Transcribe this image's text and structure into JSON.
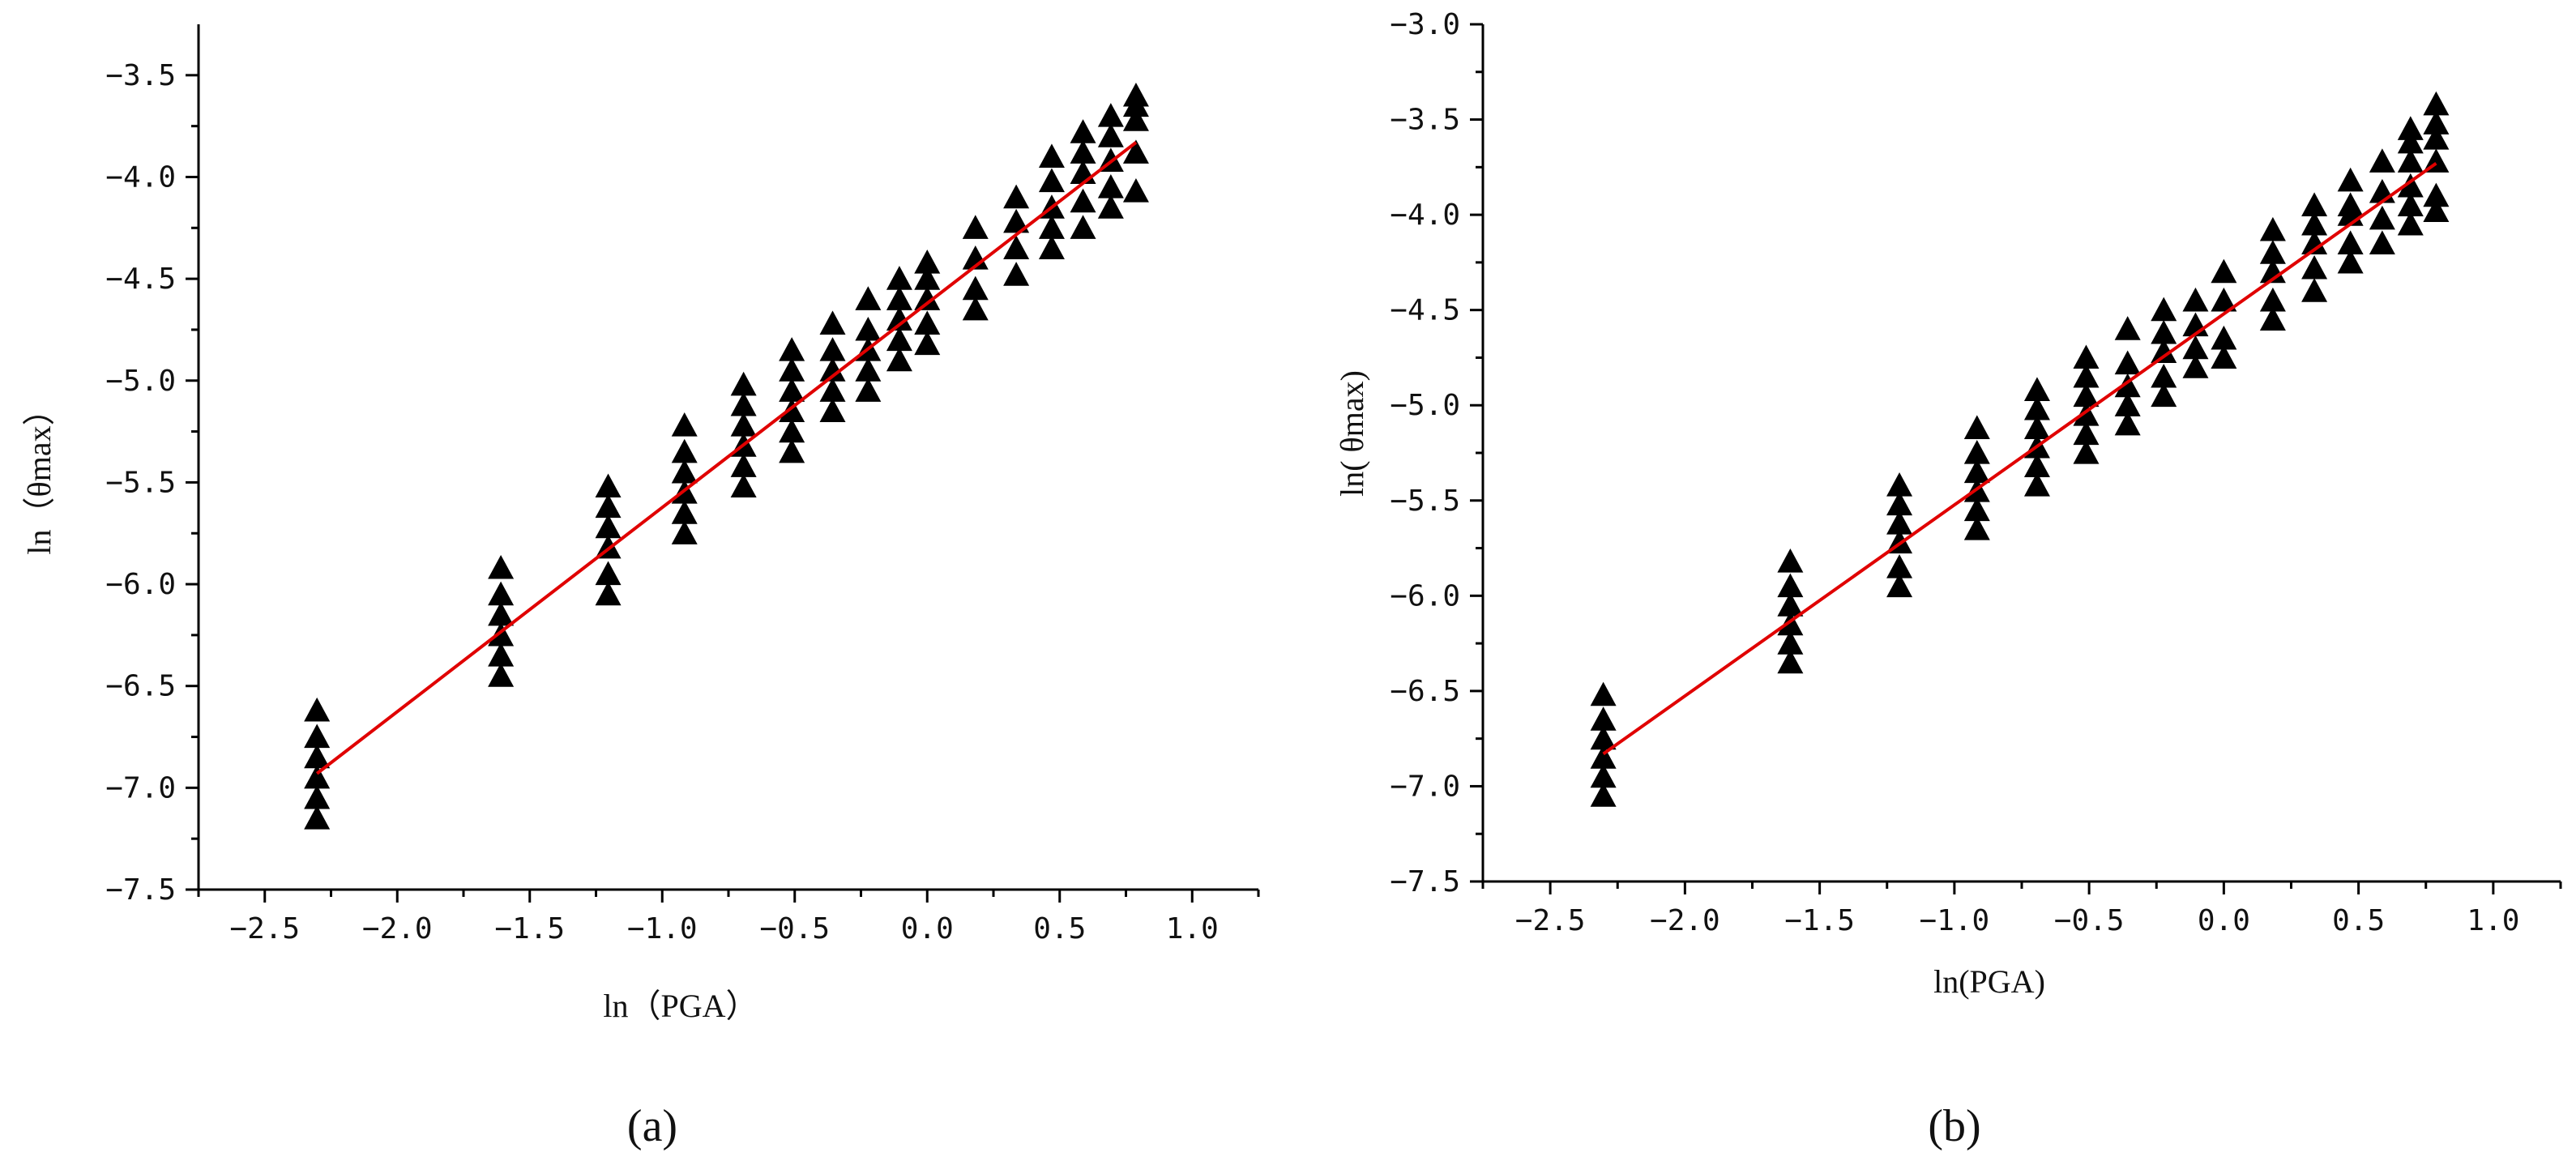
{
  "chart_data": [
    {
      "type": "scatter",
      "panel_label": "(a)",
      "xlabel": "ln（PGA）",
      "ylabel": "ln（θmax）",
      "xlim": [
        -2.75,
        1.25
      ],
      "ylim": [
        -7.5,
        -3.25
      ],
      "xticks": [
        -2.5,
        -2.0,
        -1.5,
        -1.0,
        -0.5,
        0.0,
        0.5,
        1.0
      ],
      "xtick_labels": [
        "−2.5",
        "−2.0",
        "−1.5",
        "−1.0",
        "−0.5",
        "0.0",
        "0.5",
        "1.0"
      ],
      "yticks": [
        -7.5,
        -7.0,
        -6.5,
        -6.0,
        -5.5,
        -5.0,
        -4.5,
        -4.0,
        -3.5
      ],
      "ytick_labels": [
        "−7.5",
        "−7.0",
        "−6.5",
        "−6.0",
        "−5.5",
        "−5.0",
        "−4.5",
        "−4.0",
        "−3.5"
      ],
      "grid": false,
      "marker": "triangle",
      "marker_color": "#000000",
      "line_color": "#e00000",
      "x_groups": [
        -2.303,
        -1.609,
        -1.204,
        -0.916,
        -0.693,
        -0.511,
        -0.357,
        -0.223,
        -0.105,
        0.0,
        0.182,
        0.336,
        0.47,
        0.588,
        0.693,
        0.788
      ],
      "y_groups": [
        [
          -7.15,
          -7.05,
          -6.95,
          -6.85,
          -6.75,
          -6.62
        ],
        [
          -6.45,
          -6.35,
          -6.25,
          -6.15,
          -6.05,
          -5.92
        ],
        [
          -6.05,
          -5.95,
          -5.82,
          -5.72,
          -5.62,
          -5.52
        ],
        [
          -5.75,
          -5.65,
          -5.55,
          -5.45,
          -5.35,
          -5.22
        ],
        [
          -5.52,
          -5.42,
          -5.32,
          -5.22,
          -5.12,
          -5.02
        ],
        [
          -5.35,
          -5.25,
          -5.15,
          -5.05,
          -4.95,
          -4.85
        ],
        [
          -5.15,
          -5.05,
          -4.95,
          -4.85,
          -4.72
        ],
        [
          -5.05,
          -4.95,
          -4.85,
          -4.75,
          -4.6
        ],
        [
          -4.9,
          -4.8,
          -4.7,
          -4.6,
          -4.5
        ],
        [
          -4.82,
          -4.72,
          -4.6,
          -4.5,
          -4.42
        ],
        [
          -4.65,
          -4.55,
          -4.4,
          -4.25
        ],
        [
          -4.48,
          -4.35,
          -4.22,
          -4.1
        ],
        [
          -4.35,
          -4.25,
          -4.15,
          -4.02,
          -3.9
        ],
        [
          -4.25,
          -4.12,
          -3.98,
          -3.88,
          -3.78
        ],
        [
          -4.15,
          -4.05,
          -3.92,
          -3.8,
          -3.7
        ],
        [
          -4.07,
          -3.88,
          -3.72,
          -3.65,
          -3.6
        ]
      ],
      "fit_line": {
        "x": [
          -2.303,
          0.788
        ],
        "y": [
          -6.93,
          -3.83
        ]
      }
    },
    {
      "type": "scatter",
      "panel_label": "(b)",
      "xlabel": "ln(PGA)",
      "ylabel": "ln( θmax)",
      "xlim": [
        -2.75,
        1.25
      ],
      "ylim": [
        -7.5,
        -3.0
      ],
      "xticks": [
        -2.5,
        -2.0,
        -1.5,
        -1.0,
        -0.5,
        0.0,
        0.5,
        1.0
      ],
      "xtick_labels": [
        "−2.5",
        "−2.0",
        "−1.5",
        "−1.0",
        "−0.5",
        "0.0",
        "0.5",
        "1.0"
      ],
      "yticks": [
        -7.5,
        -7.0,
        -6.5,
        -6.0,
        -5.5,
        -5.0,
        -4.5,
        -4.0,
        -3.5,
        -3.0
      ],
      "ytick_labels": [
        "−7.5",
        "−7.0",
        "−6.5",
        "−6.0",
        "−5.5",
        "−5.0",
        "−4.5",
        "−4.0",
        "−3.5",
        "−3.0"
      ],
      "grid": false,
      "marker": "triangle",
      "marker_color": "#000000",
      "line_color": "#e00000",
      "x_groups": [
        -2.303,
        -1.609,
        -1.204,
        -0.916,
        -0.693,
        -0.511,
        -0.357,
        -0.223,
        -0.105,
        0.0,
        0.182,
        0.336,
        0.47,
        0.588,
        0.693,
        0.788
      ],
      "y_groups": [
        [
          -7.05,
          -6.95,
          -6.85,
          -6.75,
          -6.65,
          -6.52
        ],
        [
          -6.35,
          -6.25,
          -6.15,
          -6.05,
          -5.95,
          -5.82
        ],
        [
          -5.95,
          -5.85,
          -5.72,
          -5.62,
          -5.52,
          -5.42
        ],
        [
          -5.65,
          -5.55,
          -5.45,
          -5.35,
          -5.25,
          -5.12
        ],
        [
          -5.42,
          -5.32,
          -5.22,
          -5.12,
          -5.02,
          -4.92
        ],
        [
          -5.25,
          -5.15,
          -5.05,
          -4.95,
          -4.85,
          -4.75
        ],
        [
          -5.1,
          -5.0,
          -4.9,
          -4.78,
          -4.6
        ],
        [
          -4.95,
          -4.85,
          -4.72,
          -4.62,
          -4.5
        ],
        [
          -4.8,
          -4.7,
          -4.58,
          -4.45
        ],
        [
          -4.75,
          -4.65,
          -4.45,
          -4.3
        ],
        [
          -4.55,
          -4.45,
          -4.3,
          -4.2,
          -4.08
        ],
        [
          -4.4,
          -4.28,
          -4.15,
          -4.05,
          -3.95
        ],
        [
          -4.25,
          -4.15,
          -4.0,
          -3.95,
          -3.82
        ],
        [
          -4.15,
          -4.02,
          -3.88,
          -3.72
        ],
        [
          -4.05,
          -3.95,
          -3.85,
          -3.72,
          -3.62,
          -3.55
        ],
        [
          -3.98,
          -3.9,
          -3.72,
          -3.6,
          -3.52,
          -3.42
        ]
      ],
      "fit_line": {
        "x": [
          -2.303,
          0.788
        ],
        "y": [
          -6.83,
          -3.73
        ]
      }
    }
  ]
}
